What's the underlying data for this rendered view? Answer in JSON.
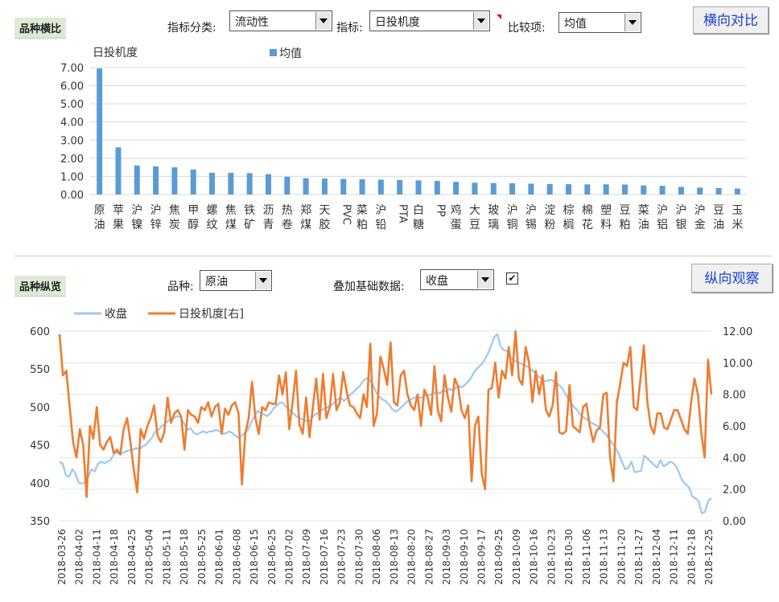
{
  "top_panel": {
    "section_label": "品种横比",
    "category_label": "指标分类:",
    "category_value": "流动性",
    "indicator_label": "指标:",
    "indicator_value": "日投机度",
    "compare_label": "比较项:",
    "compare_value": "均值",
    "button_label": "横向对比"
  },
  "bottom_panel": {
    "section_label": "品种纵览",
    "variety_label": "品种:",
    "variety_value": "原油",
    "overlay_label": "叠加基础数据:",
    "overlay_value": "收盘",
    "overlay_checked": "✔",
    "button_label": "纵向观察"
  },
  "chart_data": [
    {
      "type": "bar",
      "title": "日投机度",
      "legend": "均值",
      "color": "#5b9bd5",
      "ylim": [
        0,
        7
      ],
      "yticks": [
        "0.00",
        "1.00",
        "2.00",
        "3.00",
        "4.00",
        "5.00",
        "6.00",
        "7.00"
      ],
      "categories": [
        "原油",
        "苹果",
        "沪镍",
        "沪锌",
        "焦炭",
        "甲醇",
        "螺纹",
        "焦煤",
        "铁矿",
        "沥青",
        "热卷",
        "郑煤",
        "天胶",
        "PVC",
        "菜粕",
        "沪铅",
        "PTA",
        "白糖",
        "PP",
        "鸡蛋",
        "大豆",
        "玻璃",
        "沪铜",
        "沪锡",
        "淀粉",
        "棕榈",
        "棉花",
        "塑料",
        "豆粕",
        "菜油",
        "沪铝",
        "沪银",
        "沪金",
        "豆油",
        "玉米"
      ],
      "values": [
        6.95,
        2.6,
        1.6,
        1.55,
        1.5,
        1.38,
        1.2,
        1.2,
        1.18,
        1.12,
        0.98,
        0.9,
        0.88,
        0.86,
        0.84,
        0.82,
        0.8,
        0.78,
        0.75,
        0.7,
        0.65,
        0.63,
        0.62,
        0.6,
        0.58,
        0.57,
        0.56,
        0.56,
        0.55,
        0.5,
        0.48,
        0.42,
        0.38,
        0.36,
        0.33
      ]
    },
    {
      "type": "line",
      "series": [
        {
          "name": "收盘",
          "color": "#9dc8ef",
          "axis": "left",
          "values": [
            428,
            425,
            410,
            408,
            418,
            412,
            400,
            399,
            401,
            408,
            418,
            415,
            425,
            428,
            426,
            428,
            430,
            438,
            440,
            438,
            440,
            442,
            443,
            444,
            446,
            444,
            448,
            450,
            455,
            460,
            468,
            470,
            475,
            478,
            482,
            485,
            486,
            488,
            486,
            478,
            470,
            472,
            466,
            464,
            466,
            468,
            466,
            468,
            468,
            470,
            468,
            465,
            465,
            468,
            466,
            462,
            460,
            462,
            466,
            470,
            480,
            488,
            495,
            492,
            490,
            488,
            492,
            498,
            502,
            506,
            505,
            500,
            496,
            492,
            488,
            486,
            484,
            482,
            480,
            486,
            490,
            492,
            496,
            498,
            500,
            502,
            506,
            510,
            512,
            508,
            512,
            516,
            520,
            524,
            528,
            534,
            538,
            536,
            530,
            520,
            514,
            510,
            508,
            504,
            498,
            494,
            496,
            500,
            504,
            508,
            510,
            512,
            514,
            512,
            514,
            516,
            516,
            518,
            520,
            518,
            522,
            520,
            524,
            522,
            525,
            528,
            526,
            530,
            534,
            540,
            548,
            552,
            556,
            562,
            570,
            580,
            592,
            596,
            580,
            575,
            574,
            566,
            562,
            560,
            558,
            556,
            554,
            552,
            548,
            544,
            540,
            536,
            534,
            535,
            536,
            532,
            530,
            526,
            520,
            512,
            506,
            500,
            496,
            490,
            486,
            484,
            480,
            478,
            476,
            472,
            468,
            464,
            458,
            452,
            446,
            438,
            428,
            418,
            420,
            428,
            414,
            415,
            416,
            436,
            432,
            428,
            424,
            420,
            430,
            422,
            424,
            428,
            426,
            422,
            412,
            402,
            398,
            394,
            382,
            380,
            376,
            360,
            362,
            376,
            380
          ]
        },
        {
          "name": "日投机度[右]",
          "color": "#ed7d31",
          "axis": "right",
          "values": [
            11.8,
            9.2,
            9.5,
            7.2,
            5.0,
            4.0,
            5.8,
            4.8,
            1.5,
            6.0,
            5.2,
            7.2,
            4.8,
            4.5,
            5.0,
            5.3,
            4.3,
            4.5,
            4.2,
            5.8,
            6.5,
            5.0,
            3.2,
            1.8,
            5.8,
            5.2,
            6.0,
            6.5,
            7.3,
            5.4,
            5.0,
            5.6,
            7.8,
            6.2,
            6.8,
            7.0,
            6.6,
            4.5,
            7.0,
            6.7,
            6.6,
            6.2,
            7.2,
            7.0,
            7.5,
            6.6,
            7.2,
            7.4,
            5.5,
            7.1,
            6.7,
            7.3,
            7.5,
            6.8,
            2.3,
            5.5,
            6.5,
            8.8,
            6.5,
            5.5,
            7.2,
            7.0,
            7.5,
            7.4,
            7.4,
            9.2,
            8.0,
            9.4,
            5.8,
            7.5,
            9.5,
            6.1,
            5.5,
            7.8,
            5.3,
            7.2,
            9.0,
            6.4,
            9.3,
            6.5,
            7.2,
            9.3,
            7.0,
            7.5,
            9.4,
            8.2,
            7.3,
            7.2,
            6.8,
            6.5,
            8.0,
            7.2,
            11.2,
            6.0,
            6.8,
            10.4,
            9.6,
            8.6,
            11.3,
            7.5,
            7.3,
            9.2,
            9.5,
            8.0,
            7.3,
            7.0,
            8.0,
            6.0,
            8.3,
            7.8,
            6.7,
            9.8,
            7.0,
            6.3,
            9.2,
            7.8,
            6.9,
            9.0,
            8.5,
            7.0,
            6.5,
            7.3,
            2.5,
            6.0,
            6.6,
            3.0,
            2.0,
            8.3,
            8.4,
            10.0,
            7.8,
            9.5,
            9.0,
            11.0,
            9.2,
            12.0,
            9.0,
            8.6,
            11.0,
            10.0,
            7.5,
            9.5,
            8.0,
            9.2,
            7.0,
            6.6,
            7.3,
            9.4,
            5.6,
            5.5,
            5.7,
            8.6,
            6.0,
            5.8,
            5.6,
            7.2,
            7.4,
            6.0,
            5.0,
            5.7,
            5.9,
            8.0,
            8.1,
            4.0,
            2.5,
            7.5,
            8.7,
            10.0,
            9.8,
            11.0,
            7.2,
            7.0,
            9.0,
            11.1,
            7.6,
            6.0,
            5.5,
            6.8,
            6.8,
            5.9,
            5.8,
            6.4,
            7.0,
            7.0,
            6.4,
            5.8,
            5.5,
            7.5,
            9.0,
            8.0,
            5.6,
            4.0,
            10.2,
            8.0
          ]
        }
      ],
      "left_ylim": [
        350,
        600
      ],
      "left_yticks": [
        "350",
        "400",
        "450",
        "500",
        "550",
        "600"
      ],
      "right_ylim": [
        0,
        12
      ],
      "right_yticks": [
        "0.00",
        "2.00",
        "4.00",
        "6.00",
        "8.00",
        "10.00",
        "12.00"
      ],
      "xticks": [
        "2018-03-26",
        "2018-04-02",
        "2018-04-11",
        "2018-04-18",
        "2018-04-25",
        "2018-05-04",
        "2018-05-11",
        "2018-05-18",
        "2018-05-25",
        "2018-06-01",
        "2018-06-08",
        "2018-06-15",
        "2018-06-25",
        "2018-07-02",
        "2018-07-09",
        "2018-07-16",
        "2018-07-23",
        "2018-07-30",
        "2018-08-06",
        "2018-08-13",
        "2018-08-20",
        "2018-08-27",
        "2018-09-03",
        "2018-09-10",
        "2018-09-17",
        "2018-09-25",
        "2018-10-09",
        "2018-10-16",
        "2018-10-23",
        "2018-10-30",
        "2018-11-06",
        "2018-11-13",
        "2018-11-20",
        "2018-11-27",
        "2018-12-04",
        "2018-12-11",
        "2018-12-18",
        "2018-12-25"
      ]
    }
  ]
}
